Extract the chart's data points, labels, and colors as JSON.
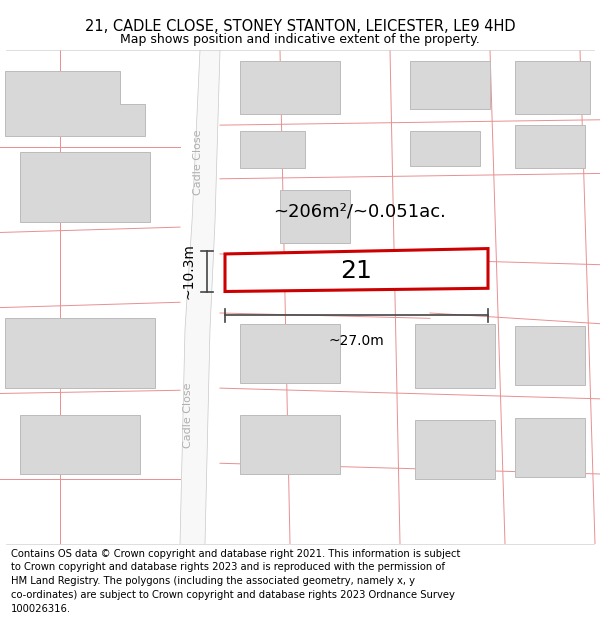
{
  "title": "21, CADLE CLOSE, STONEY STANTON, LEICESTER, LE9 4HD",
  "subtitle": "Map shows position and indicative extent of the property.",
  "footer_line1": "Contains OS data © Crown copyright and database right 2021. This information is subject",
  "footer_line2": "to Crown copyright and database rights 2023 and is reproduced with the permission of",
  "footer_line3": "HM Land Registry. The polygons (including the associated geometry, namely x, y",
  "footer_line4": "co-ordinates) are subject to Crown copyright and database rights 2023 Ordnance Survey",
  "footer_line5": "100026316.",
  "bg_color": "#ffffff",
  "map_bg": "#ffffff",
  "building_fill": "#d8d8d8",
  "building_outline": "#bbbbbb",
  "property_fill": "#ffffff",
  "property_outline": "#cc0000",
  "dim_line_color": "#444444",
  "road_label": "Cadle Close",
  "area_label": "~206m²/~0.051ac.",
  "property_number": "21",
  "dim_width": "~27.0m",
  "dim_height": "~10.3m",
  "pink_line_color": "#e89090",
  "title_fontsize": 10.5,
  "subtitle_fontsize": 9,
  "footer_fontsize": 7.2,
  "road_label_color": "#b0b0b0",
  "road_fill": "#f8f8f8",
  "road_edge": "#d0d0d0"
}
